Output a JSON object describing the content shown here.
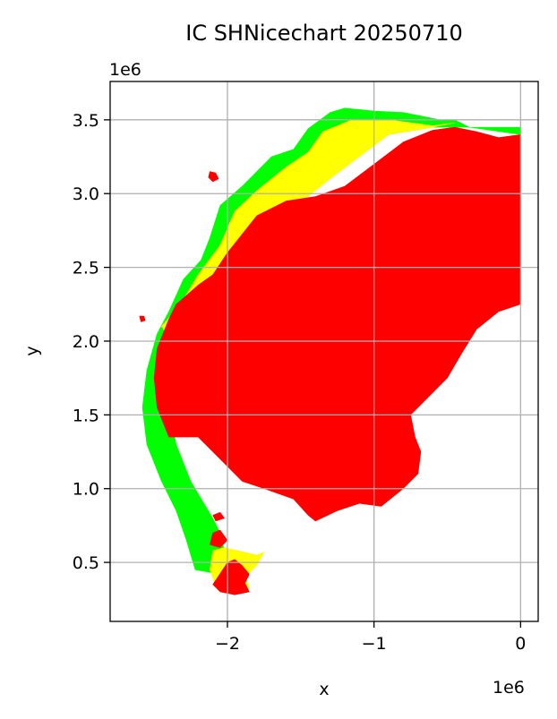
{
  "chart_data": {
    "type": "map",
    "title": "IC SHNicechart 20250710",
    "xlabel": "x",
    "ylabel": "y",
    "x_offset_label": "1e6",
    "y_offset_label": "1e6",
    "xlim": [
      -2.8,
      0.12
    ],
    "ylim": [
      0.1,
      3.76
    ],
    "xticks": [
      -2,
      -1,
      0
    ],
    "xtick_labels": [
      "−2",
      "−1",
      "0"
    ],
    "yticks": [
      0.5,
      1.0,
      1.5,
      2.0,
      2.5,
      3.0,
      3.5
    ],
    "ytick_labels": [
      "0.5",
      "1.0",
      "1.5",
      "2.0",
      "2.5",
      "3.0",
      "3.5"
    ],
    "grid": true,
    "colors": {
      "red": "#ff0000",
      "yellow": "#ffff00",
      "green": "#00ff00",
      "grid": "#b0b0b0",
      "axis": "#000000"
    },
    "regions": [
      {
        "name": "green",
        "color": "#00ff00",
        "polygons": [
          [
            [
              -1.0,
              3.56
            ],
            [
              -1.2,
              3.58
            ],
            [
              -1.3,
              3.55
            ],
            [
              -1.45,
              3.44
            ],
            [
              -1.55,
              3.3
            ],
            [
              -1.7,
              3.25
            ],
            [
              -1.9,
              3.05
            ],
            [
              -2.05,
              2.92
            ],
            [
              -2.12,
              2.7
            ],
            [
              -2.18,
              2.55
            ],
            [
              -2.3,
              2.42
            ],
            [
              -2.4,
              2.2
            ],
            [
              -2.48,
              2.05
            ],
            [
              -2.55,
              1.8
            ],
            [
              -2.58,
              1.55
            ],
            [
              -2.55,
              1.3
            ],
            [
              -2.45,
              1.05
            ],
            [
              -2.35,
              0.85
            ],
            [
              -2.28,
              0.65
            ],
            [
              -2.22,
              0.45
            ],
            [
              -2.05,
              0.42
            ],
            [
              -2.0,
              0.5
            ],
            [
              -2.05,
              0.7
            ],
            [
              -2.1,
              0.8
            ],
            [
              -2.25,
              1.05
            ],
            [
              -2.35,
              1.3
            ],
            [
              -2.4,
              1.55
            ],
            [
              -2.38,
              1.85
            ],
            [
              -2.1,
              2.3
            ],
            [
              -1.9,
              2.7
            ],
            [
              -1.6,
              3.05
            ],
            [
              -1.2,
              3.35
            ],
            [
              -0.6,
              3.45
            ],
            [
              0.0,
              3.45
            ],
            [
              0.0,
              3.4
            ],
            [
              -0.35,
              3.45
            ],
            [
              -0.45,
              3.5
            ],
            [
              -0.55,
              3.5
            ],
            [
              -0.8,
              3.55
            ]
          ]
        ]
      },
      {
        "name": "yellow",
        "color": "#ffff00",
        "polygons": [
          [
            [
              -0.45,
              3.48
            ],
            [
              -0.6,
              3.46
            ],
            [
              -0.9,
              3.5
            ],
            [
              -1.15,
              3.5
            ],
            [
              -1.35,
              3.42
            ],
            [
              -1.45,
              3.28
            ],
            [
              -1.6,
              3.18
            ],
            [
              -1.8,
              3.02
            ],
            [
              -1.95,
              2.88
            ],
            [
              -2.05,
              2.65
            ],
            [
              -2.2,
              2.45
            ],
            [
              -2.32,
              2.25
            ],
            [
              -2.45,
              2.1
            ],
            [
              -2.35,
              1.95
            ],
            [
              -2.15,
              2.2
            ],
            [
              -1.8,
              2.7
            ],
            [
              -1.3,
              3.1
            ],
            [
              -0.9,
              3.4
            ],
            [
              -0.6,
              3.45
            ]
          ],
          [
            [
              -2.1,
              0.58
            ],
            [
              -2.02,
              0.6
            ],
            [
              -1.8,
              0.55
            ],
            [
              -1.75,
              0.57
            ],
            [
              -1.8,
              0.48
            ],
            [
              -1.88,
              0.4
            ],
            [
              -1.85,
              0.33
            ],
            [
              -1.95,
              0.3
            ],
            [
              -2.08,
              0.34
            ],
            [
              -2.12,
              0.45
            ]
          ]
        ]
      },
      {
        "name": "red",
        "color": "#ff0000",
        "polygons": [
          [
            [
              0.0,
              3.4
            ],
            [
              -0.15,
              3.38
            ],
            [
              -0.3,
              3.42
            ],
            [
              -0.45,
              3.45
            ],
            [
              -0.6,
              3.43
            ],
            [
              -0.8,
              3.35
            ],
            [
              -1.0,
              3.2
            ],
            [
              -1.2,
              3.05
            ],
            [
              -1.4,
              2.98
            ],
            [
              -1.6,
              2.95
            ],
            [
              -1.8,
              2.85
            ],
            [
              -2.0,
              2.6
            ],
            [
              -2.1,
              2.45
            ],
            [
              -2.2,
              2.38
            ],
            [
              -2.35,
              2.25
            ],
            [
              -2.4,
              2.15
            ],
            [
              -2.48,
              1.95
            ],
            [
              -2.5,
              1.75
            ],
            [
              -2.48,
              1.55
            ],
            [
              -2.42,
              1.4
            ],
            [
              -2.4,
              1.35
            ],
            [
              -2.2,
              1.35
            ],
            [
              -2.1,
              1.25
            ],
            [
              -2.0,
              1.15
            ],
            [
              -1.9,
              1.05
            ],
            [
              -1.75,
              1.0
            ],
            [
              -1.55,
              0.93
            ],
            [
              -1.45,
              0.82
            ],
            [
              -1.4,
              0.78
            ],
            [
              -1.25,
              0.85
            ],
            [
              -1.1,
              0.9
            ],
            [
              -0.95,
              0.88
            ],
            [
              -0.8,
              1.0
            ],
            [
              -0.7,
              1.1
            ],
            [
              -0.68,
              1.25
            ],
            [
              -0.72,
              1.35
            ],
            [
              -0.75,
              1.5
            ],
            [
              -0.65,
              1.6
            ],
            [
              -0.5,
              1.75
            ],
            [
              -0.4,
              1.92
            ],
            [
              -0.3,
              2.08
            ],
            [
              -0.15,
              2.2
            ],
            [
              0.0,
              2.25
            ]
          ],
          [
            [
              -2.0,
              0.5
            ],
            [
              -1.95,
              0.52
            ],
            [
              -1.9,
              0.48
            ],
            [
              -1.85,
              0.42
            ],
            [
              -1.88,
              0.36
            ],
            [
              -1.85,
              0.3
            ],
            [
              -1.95,
              0.28
            ],
            [
              -2.05,
              0.3
            ],
            [
              -2.1,
              0.35
            ]
          ],
          [
            [
              -2.1,
              0.7
            ],
            [
              -2.05,
              0.72
            ],
            [
              -2.0,
              0.65
            ],
            [
              -2.05,
              0.6
            ],
            [
              -2.12,
              0.62
            ]
          ],
          [
            [
              -2.1,
              0.82
            ],
            [
              -2.05,
              0.84
            ],
            [
              -2.02,
              0.8
            ],
            [
              -2.08,
              0.78
            ]
          ],
          [
            [
              -2.12,
              3.15
            ],
            [
              -2.08,
              3.14
            ],
            [
              -2.06,
              3.1
            ],
            [
              -2.1,
              3.08
            ],
            [
              -2.13,
              3.11
            ]
          ],
          [
            [
              -2.6,
              2.17
            ],
            [
              -2.57,
              2.17
            ],
            [
              -2.56,
              2.14
            ],
            [
              -2.59,
              2.13
            ]
          ]
        ]
      }
    ]
  }
}
